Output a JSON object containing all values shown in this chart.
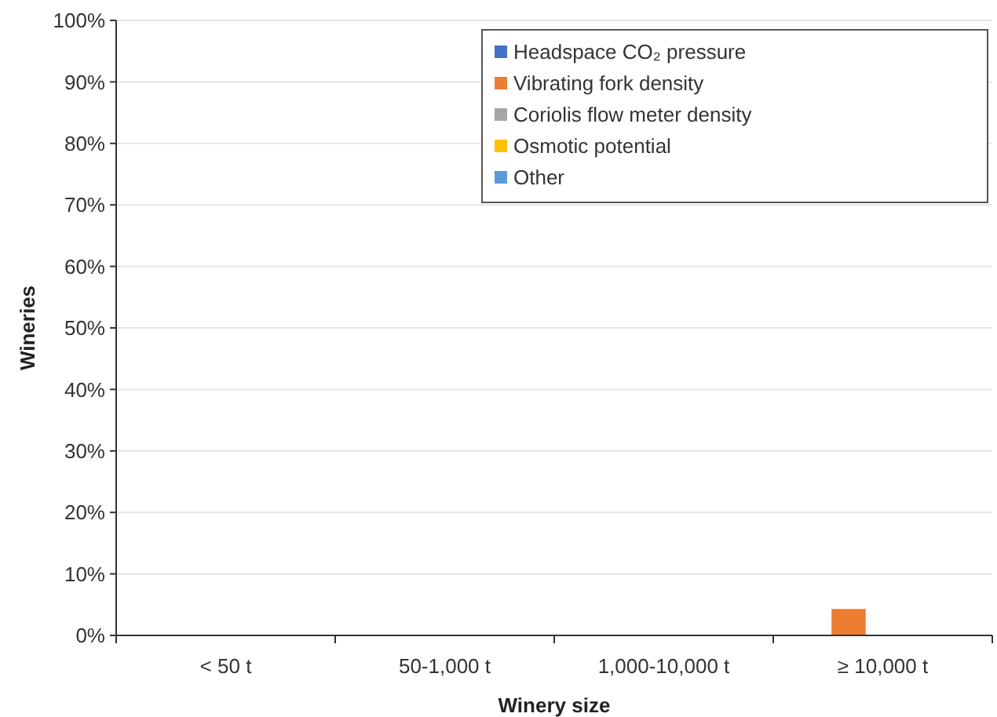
{
  "chart_data": {
    "type": "bar",
    "xlabel": "Winery size",
    "ylabel": "Wineries",
    "categories": [
      "< 50 t",
      "50-1,000 t",
      "1,000-10,000 t",
      "≥ 10,000 t"
    ],
    "series": [
      {
        "name": "Headspace CO₂ pressure",
        "color": "#4472c4",
        "values": [
          0,
          0,
          0,
          0
        ]
      },
      {
        "name": "Vibrating fork density",
        "color": "#ed7d31",
        "values": [
          0,
          0,
          0,
          4.3
        ]
      },
      {
        "name": "Coriolis flow meter density",
        "color": "#a5a5a5",
        "values": [
          0,
          0,
          0,
          0
        ]
      },
      {
        "name": "Osmotic potential",
        "color": "#ffc000",
        "values": [
          0,
          0,
          0,
          0
        ]
      },
      {
        "name": "Other",
        "color": "#5b9bd5",
        "values": [
          0,
          0,
          0,
          0
        ]
      }
    ],
    "ylim": [
      0,
      100
    ],
    "yticks": [
      {
        "value": 0,
        "label": "0%"
      },
      {
        "value": 10,
        "label": "10%"
      },
      {
        "value": 20,
        "label": "20%"
      },
      {
        "value": 30,
        "label": "30%"
      },
      {
        "value": 40,
        "label": "40%"
      },
      {
        "value": 50,
        "label": "50%"
      },
      {
        "value": 60,
        "label": "60%"
      },
      {
        "value": 70,
        "label": "70%"
      },
      {
        "value": 80,
        "label": "80%"
      },
      {
        "value": 90,
        "label": "90%"
      },
      {
        "value": 100,
        "label": "100%"
      }
    ],
    "grid": "y",
    "legend": "top right"
  }
}
